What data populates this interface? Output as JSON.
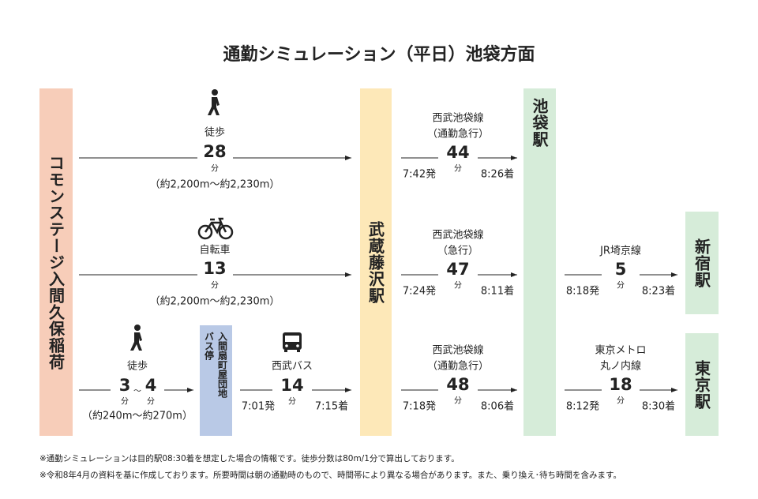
{
  "title": "通勤シミュレーション（平日）池袋方面",
  "stations": {
    "start": "コモンステージ入間久保稲荷",
    "bus_stop": [
      "入間扇町屋団地",
      "バス停"
    ],
    "musashi_fujisawa": "武蔵藤沢駅",
    "ikebukuro": "池袋駅",
    "shinjuku": "新宿駅",
    "tokyo": "東京駅"
  },
  "routes": [
    {
      "mode": "徒歩",
      "minutes": "28",
      "unit": "分",
      "distance": "（約2,200m～約2,230m）"
    },
    {
      "mode": "自転車",
      "minutes": "13",
      "unit": "分",
      "distance": "（約2,200m～約2,230m）"
    },
    {
      "mode": "徒歩",
      "minutes_min": "3",
      "unit_min": "分",
      "separator": "～",
      "minutes_max": "4",
      "unit_max": "分",
      "distance": "（約240m～約270m）"
    },
    {
      "line": "西武バス",
      "depart": "7:01発",
      "minutes": "14",
      "unit": "分",
      "arrive": "7:15着"
    }
  ],
  "trains": [
    {
      "line": [
        "西武池袋線",
        "（通勤急行）"
      ],
      "depart": "7:42発",
      "minutes": "44",
      "unit": "分",
      "arrive": "8:26着"
    },
    {
      "line": [
        "西武池袋線",
        "（急行）"
      ],
      "depart": "7:24発",
      "minutes": "47",
      "unit": "分",
      "arrive": "8:11着"
    },
    {
      "line": [
        "西武池袋線",
        "（通勤急行）"
      ],
      "depart": "7:18発",
      "minutes": "48",
      "unit": "分",
      "arrive": "8:06着"
    }
  ],
  "transfers": [
    {
      "line": [
        "JR埼京線"
      ],
      "depart": "8:18発",
      "minutes": "5",
      "unit": "分",
      "arrive": "8:23着"
    },
    {
      "line": [
        "東京メトロ",
        "丸ノ内線"
      ],
      "depart": "8:12発",
      "minutes": "18",
      "unit": "分",
      "arrive": "8:30着"
    }
  ],
  "notes": [
    "※通勤シミュレーションは目的駅08:30着を想定した場合の情報です。徒歩分数は80m/1分で算出しております。",
    "※令和8年4月の資料を基に作成しております。所要時間は朝の通勤時のもので、時間帯により異なる場合があります。また、乗り換え･待ち時間を含みます。"
  ]
}
